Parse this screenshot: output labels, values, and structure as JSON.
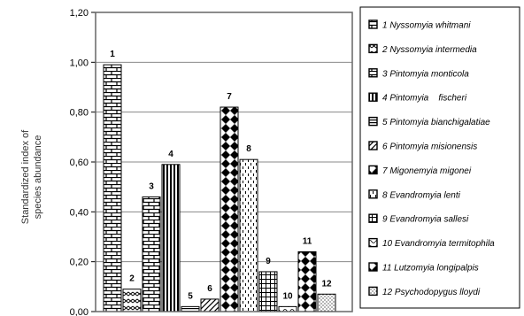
{
  "chart_data": {
    "type": "bar",
    "title": "",
    "xlabel": "",
    "ylabel_lines": [
      "Standardized index of",
      "species abundance"
    ],
    "ylim": [
      0,
      1.2
    ],
    "yticks": [
      "0,00",
      "0,20",
      "0,40",
      "0,60",
      "0,80",
      "1,00",
      "1,20"
    ],
    "grid": "horizontal",
    "legend_position": "right",
    "bar_labels": [
      "1",
      "2",
      "3",
      "4",
      "5",
      "6",
      "7",
      "8",
      "9",
      "10",
      "11",
      "12"
    ],
    "values": [
      0.99,
      0.09,
      0.46,
      0.59,
      0.02,
      0.05,
      0.82,
      0.61,
      0.16,
      0.02,
      0.24,
      0.07
    ],
    "legend": [
      "1 Nyssomyia whitmani",
      "2 Nyssomyia intermedia",
      "3 Pintomyia monticola",
      "4 Pintomyia    fischeri",
      "5 Pintomyia bianchigalatiae",
      "6 Pintomyia misionensis",
      "7 Migonemyia migonei",
      "8 Evandromyia lenti",
      "9 Evandromyia sallesi",
      "10 Evandromyia termitophila",
      "11 Lutzomyia longipalpis",
      "12 Psychodopygus lloydi"
    ],
    "patterns": [
      "brick",
      "zigzag",
      "brick",
      "vstripes",
      "hlines",
      "diag",
      "diamond",
      "dashes",
      "grid",
      "wave",
      "diamond",
      "dots"
    ]
  }
}
